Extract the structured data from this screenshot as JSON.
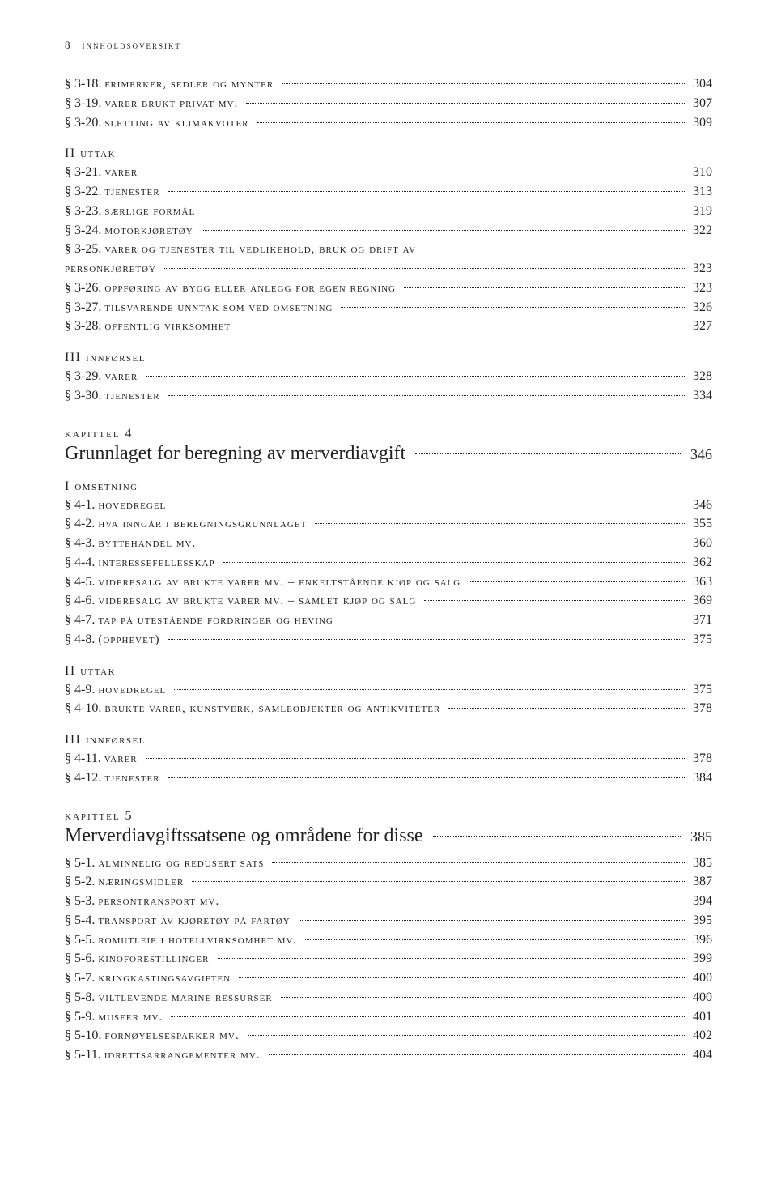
{
  "running_head": {
    "page_no": "8",
    "title": "innholdsoversikt"
  },
  "sec": {
    "s318": {
      "no": "§ 3-18.",
      "title": "frimerker, sedler og mynter",
      "pg": "304"
    },
    "s319": {
      "no": "§ 3-19.",
      "title": "varer brukt privat mv.",
      "pg": "307"
    },
    "s320": {
      "no": "§ 3-20.",
      "title": "sletting av klimakvoter",
      "pg": "309"
    },
    "s321": {
      "no": "§ 3-21.",
      "title": "varer",
      "pg": "310"
    },
    "s322": {
      "no": "§ 3-22.",
      "title": "tjenester",
      "pg": "313"
    },
    "s323": {
      "no": "§ 3-23.",
      "title": "særlige formål",
      "pg": "319"
    },
    "s324": {
      "no": "§ 3-24.",
      "title": "motorkjøretøy",
      "pg": "322"
    },
    "s325a": {
      "no": "§ 3-25.",
      "title": "varer og tjenester til vedlikehold, bruk og drift av"
    },
    "s325b": {
      "title": "personkjøretøy",
      "pg": "323"
    },
    "s326": {
      "no": "§ 3-26.",
      "title": "oppføring av bygg eller anlegg for egen regning",
      "pg": "323"
    },
    "s327": {
      "no": "§ 3-27.",
      "title": "tilsvarende unntak som ved omsetning",
      "pg": "326"
    },
    "s328": {
      "no": "§ 3-28.",
      "title": "offentlig virksomhet",
      "pg": "327"
    },
    "s329": {
      "no": "§ 3-29.",
      "title": "varer",
      "pg": "328"
    },
    "s330": {
      "no": "§ 3-30.",
      "title": "tjenester",
      "pg": "334"
    },
    "s41": {
      "no": "§ 4-1.",
      "title": "hovedregel",
      "pg": "346"
    },
    "s42": {
      "no": "§ 4-2.",
      "title": "hva inngår i beregningsgrunnlaget",
      "pg": "355"
    },
    "s43": {
      "no": "§ 4-3.",
      "title": "byttehandel mv.",
      "pg": "360"
    },
    "s44": {
      "no": "§ 4-4.",
      "title": "interessefellesskap",
      "pg": "362"
    },
    "s45": {
      "no": "§ 4-5.",
      "title": "videresalg av brukte varer mv. – enkeltstående kjøp og salg",
      "pg": "363"
    },
    "s46": {
      "no": "§ 4-6.",
      "title": "videresalg av brukte varer mv. – samlet kjøp og salg",
      "pg": "369"
    },
    "s47": {
      "no": "§ 4-7.",
      "title": "tap på utestående fordringer og heving",
      "pg": "371"
    },
    "s48": {
      "no": "§ 4-8.",
      "title": "(opphevet)",
      "pg": "375"
    },
    "s49": {
      "no": "§ 4-9.",
      "title": "hovedregel",
      "pg": "375"
    },
    "s410": {
      "no": "§ 4-10.",
      "title": "brukte varer, kunstverk, samleobjekter og antikviteter",
      "pg": "378"
    },
    "s411": {
      "no": "§ 4-11.",
      "title": "varer",
      "pg": "378"
    },
    "s412": {
      "no": "§ 4-12.",
      "title": "tjenester",
      "pg": "384"
    },
    "s51": {
      "no": "§ 5-1.",
      "title": "alminnelig og redusert sats",
      "pg": "385"
    },
    "s52": {
      "no": "§ 5-2.",
      "title": "næringsmidler",
      "pg": "387"
    },
    "s53": {
      "no": "§ 5-3.",
      "title": "persontransport mv.",
      "pg": "394"
    },
    "s54": {
      "no": "§ 5-4.",
      "title": "transport av kjøretøy på fartøy",
      "pg": "395"
    },
    "s55": {
      "no": "§ 5-5.",
      "title": "romutleie i hotellvirksomhet mv.",
      "pg": "396"
    },
    "s56": {
      "no": "§ 5-6.",
      "title": "kinoforestillinger",
      "pg": "399"
    },
    "s57": {
      "no": "§ 5-7.",
      "title": "kringkastingsavgiften",
      "pg": "400"
    },
    "s58": {
      "no": "§ 5-8.",
      "title": "viltlevende marine ressurser",
      "pg": "400"
    },
    "s59": {
      "no": "§ 5-9.",
      "title": "museer mv.",
      "pg": "401"
    },
    "s510": {
      "no": "§ 5-10.",
      "title": "fornøyelsesparker mv.",
      "pg": "402"
    },
    "s511": {
      "no": "§ 5-11.",
      "title": "idrettsarrangementer mv.",
      "pg": "404"
    }
  },
  "group": {
    "ii_uttak_3": "II  uttak",
    "iii_innforsel_3": "III  innførsel",
    "i_omsetning_4": "I  omsetning",
    "ii_uttak_4": "II  uttak",
    "iii_innforsel_4": "III  innførsel"
  },
  "chapter": {
    "k4": {
      "label": "kapittel 4",
      "title": "Grunnlaget for beregning av merverdiavgift",
      "pg": "346"
    },
    "k5": {
      "label": "kapittel 5",
      "title": "Merverdiavgiftssatsene og områdene for disse",
      "pg": "385"
    }
  },
  "style": {
    "background_color": "#ffffff",
    "text_color": "#222222",
    "body_fontsize": 16,
    "chapter_title_fontsize": 24,
    "fonts": "Georgia, 'Times New Roman', serif"
  }
}
